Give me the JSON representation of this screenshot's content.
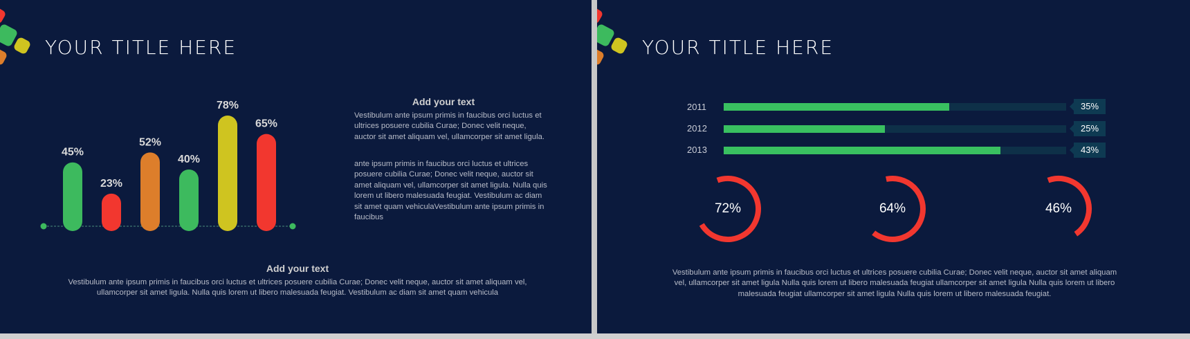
{
  "colors": {
    "background": "#0b1a3d",
    "green": "#3dba5e",
    "red": "#f2372f",
    "orange": "#dd7e2b",
    "yellow": "#cfc420",
    "track": "#0e3048",
    "badge": "#0e3a52"
  },
  "left_slide": {
    "title": "YOUR TITLE HERE",
    "side_text": {
      "heading": "Add your text",
      "paragraph1": "Vestibulum ante ipsum primis in faucibus orci luctus et ultrices posuere cubilia Curae; Donec velit neque, auctor sit amet aliquam vel, ullamcorper sit amet ligula.",
      "paragraph2": "ante ipsum primis in faucibus orci luctus et ultrices posuere cubilia Curae; Donec velit neque, auctor sit amet aliquam vel, ullamcorper sit amet ligula. Nulla quis lorem ut libero malesuada feugiat. Vestibulum ac diam sit amet quam vehiculaVestibulum ante ipsum primis in faucibus"
    },
    "bottom_text": {
      "heading": "Add your text",
      "paragraph": "Vestibulum ante ipsum primis in faucibus orci luctus et ultrices posuere cubilia Curae; Donec velit neque, auctor sit amet aliquam vel, ullamcorper sit amet ligula. Nulla quis lorem ut libero malesuada feugiat. Vestibulum ac diam sit amet quam vehicula"
    }
  },
  "right_slide": {
    "title": "YOUR TITLE HERE",
    "footer_text": "Vestibulum ante ipsum primis in faucibus orci luctus et ultrices posuere cubilia Curae; Donec velit neque, auctor sit amet aliquam vel, ullamcorper sit amet ligula Nulla quis lorem ut libero malesuada feugiat ullamcorper sit amet ligula Nulla quis lorem ut libero malesuada feugiat ullamcorper sit amet ligula Nulla quis lorem ut libero malesuada feugiat."
  },
  "chart_data": [
    {
      "type": "bar",
      "categories": [
        "",
        "",
        "",
        "",
        "",
        ""
      ],
      "values": [
        45,
        23,
        52,
        40,
        78,
        65
      ],
      "labels": [
        "45%",
        "23%",
        "52%",
        "40%",
        "78%",
        "65%"
      ],
      "bar_colors": [
        "#3dba5e",
        "#f2372f",
        "#dd7e2b",
        "#3dba5e",
        "#cfc420",
        "#f2372f"
      ],
      "ylim": [
        0,
        100
      ],
      "grid": false
    },
    {
      "type": "bar",
      "orientation": "horizontal",
      "categories": [
        "2011",
        "2012",
        "2013"
      ],
      "values": [
        35,
        25,
        43
      ],
      "labels": [
        "35%",
        "25%",
        "43%"
      ],
      "ylim": [
        0,
        100
      ]
    },
    {
      "type": "pie",
      "style": "donut",
      "values": [
        72,
        64,
        46
      ],
      "labels": [
        "72%",
        "64%",
        "46%"
      ]
    }
  ]
}
